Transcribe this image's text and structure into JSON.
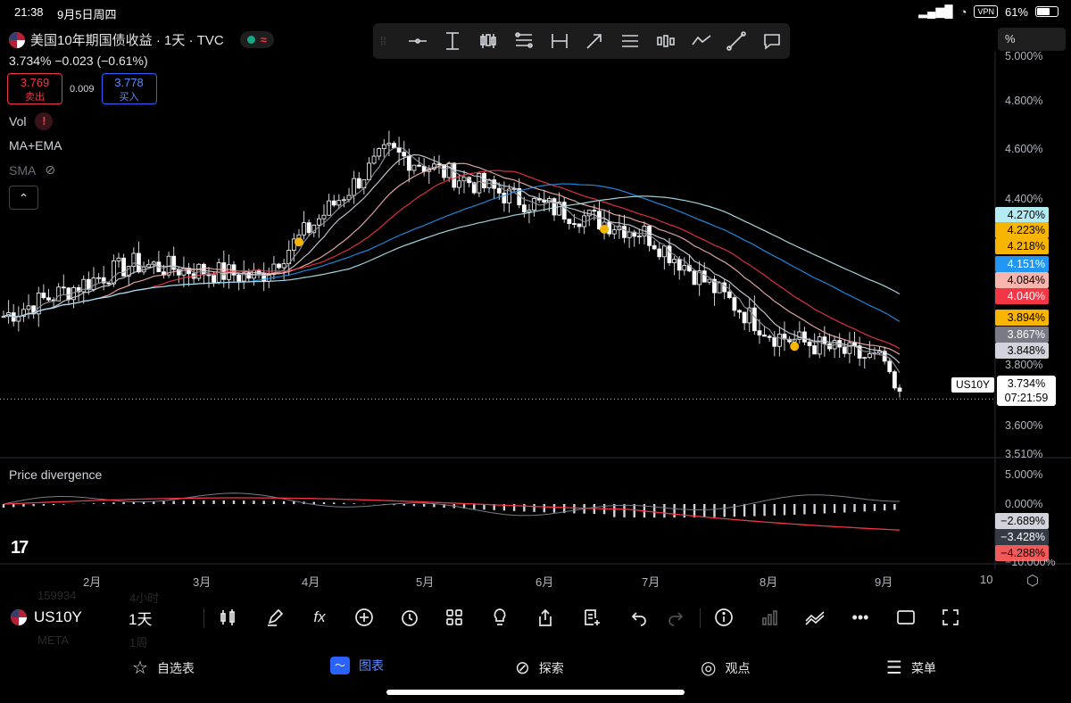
{
  "status_bar": {
    "time": "21:38",
    "date": "9月5日周四",
    "vpn": "VPN",
    "battery": "61%"
  },
  "header": {
    "symbol_title": "美国10年期国债收益 · 1天 · TVC",
    "quote": "3.734%  −0.023 (−0.61%)",
    "sell_price": "3.769",
    "sell_label": "卖出",
    "spread": "0.009",
    "buy_price": "3.778",
    "buy_label": "买入"
  },
  "indicators": {
    "vol": "Vol",
    "ma_ema": "MA+EMA",
    "sma": "SMA"
  },
  "scale_button": "%",
  "drawing_tools": [
    "horizontal-line-icon",
    "vertical-cursor-icon",
    "candles-icon",
    "fib-icon",
    "date-range-icon",
    "arrow-icon",
    "pitchfork-icon",
    "candles-alt-icon",
    "path-icon",
    "trendline-icon",
    "callout-icon"
  ],
  "price_axis": [
    "5.000%",
    "4.800%",
    "4.600%",
    "4.400%",
    "3.800%",
    "3.600%",
    "3.510%"
  ],
  "price_tags": [
    {
      "value": "4.270%",
      "bg": "#b2ebf2",
      "fg": "#000"
    },
    {
      "value": "4.223%",
      "bg": "#f7b500",
      "fg": "#000"
    },
    {
      "value": "4.218%",
      "bg": "#f7b500",
      "fg": "#000"
    },
    {
      "value": "4.151%",
      "bg": "#2196f3",
      "fg": "#fff"
    },
    {
      "value": "4.084%",
      "bg": "#f7b5ad",
      "fg": "#000"
    },
    {
      "value": "4.040%",
      "bg": "#f23645",
      "fg": "#fff"
    },
    {
      "value": "3.894%",
      "bg": "#f7b500",
      "fg": "#000"
    },
    {
      "value": "3.867%",
      "bg": "#787b86",
      "fg": "#fff"
    },
    {
      "value": "3.848%",
      "bg": "#d1d4dc",
      "fg": "#000"
    }
  ],
  "symbol_tag": "US10Y",
  "last_price": "3.734%",
  "countdown": "07:21:59",
  "divergence": {
    "title": "Price divergence",
    "axis": [
      "5.000%",
      "0.000%"
    ],
    "tags": [
      {
        "value": "−2.689%",
        "bg": "#d1d4dc",
        "fg": "#000"
      },
      {
        "value": "−3.428%",
        "bg": "#363a45",
        "fg": "#fff"
      },
      {
        "value": "−4.288%",
        "bg": "#f25a5a",
        "fg": "#000"
      }
    ],
    "cut_label": "−10.000%"
  },
  "time_axis": [
    "2月",
    "3月",
    "4月",
    "5月",
    "6月",
    "7月",
    "8月",
    "9月",
    "10"
  ],
  "ghost_list": [
    "159934",
    "4小时",
    "META",
    "1周"
  ],
  "bottom_toolbar": {
    "symbol": "US10Y",
    "resolution": "1天"
  },
  "nav": {
    "watchlist": "自选表",
    "chart": "图表",
    "explore": "探索",
    "ideas": "观点",
    "menu": "菜单"
  },
  "chart_data": {
    "type": "candlestick",
    "symbol": "US10Y",
    "unit": "%",
    "x": [
      "2月",
      "3月",
      "4月",
      "5月",
      "6月",
      "7月",
      "8月",
      "9月"
    ],
    "ylim": [
      3.51,
      5.06
    ],
    "monthly_close_approx": [
      4.05,
      4.25,
      4.2,
      4.68,
      4.5,
      4.37,
      3.98,
      3.86
    ],
    "last": 3.734,
    "indicator_levels": [
      4.27,
      4.223,
      4.218,
      4.151,
      4.084,
      4.04,
      3.894,
      3.867,
      3.848
    ]
  }
}
